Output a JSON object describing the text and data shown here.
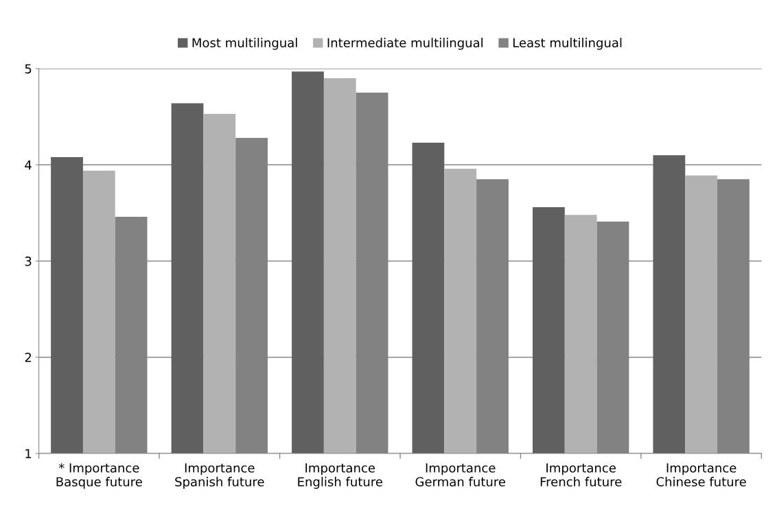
{
  "chart_data": {
    "type": "bar",
    "categories": [
      "* Importance\nBasque future",
      "Importance\nSpanish future",
      "Importance\nEnglish future",
      "Importance\nGerman future",
      "Importance\nFrench future",
      "Importance\nChinese future"
    ],
    "series": [
      {
        "name": "Most multilingual",
        "color": "#606060",
        "values": [
          4.08,
          4.64,
          4.97,
          4.23,
          3.56,
          4.1
        ]
      },
      {
        "name": "Intermediate multilingual",
        "color": "#b2b2b2",
        "values": [
          3.94,
          4.53,
          4.9,
          3.96,
          3.48,
          3.89
        ]
      },
      {
        "name": "Least multilingual",
        "color": "#828282",
        "values": [
          3.46,
          4.28,
          4.75,
          3.85,
          3.41,
          3.85
        ]
      }
    ],
    "ylim": [
      1,
      5
    ],
    "yticks": [
      1,
      2,
      3,
      4,
      5
    ],
    "grid": "y",
    "legend": "top"
  }
}
